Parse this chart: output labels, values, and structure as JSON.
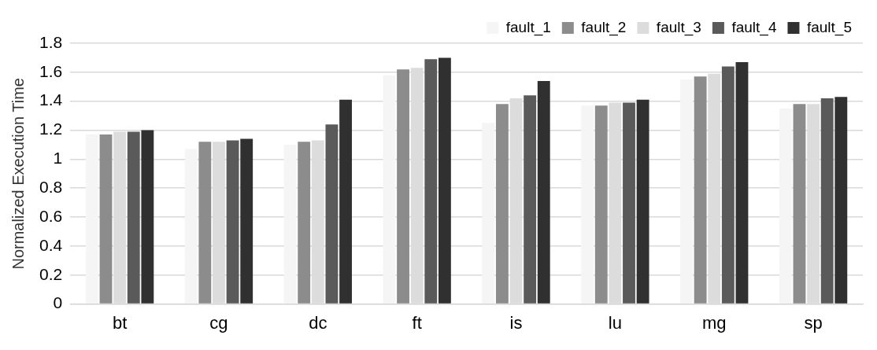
{
  "chart_data": {
    "type": "bar",
    "ylabel": "Normalized Execution Time",
    "categories": [
      "bt",
      "cg",
      "dc",
      "ft",
      "is",
      "lu",
      "mg",
      "sp"
    ],
    "series": [
      {
        "name": "fault_1",
        "color": "#f5f5f5",
        "values": [
          1.17,
          1.07,
          1.1,
          1.58,
          1.25,
          1.37,
          1.55,
          1.35
        ]
      },
      {
        "name": "fault_2",
        "color": "#8c8c8c",
        "values": [
          1.17,
          1.12,
          1.12,
          1.62,
          1.38,
          1.37,
          1.57,
          1.38
        ]
      },
      {
        "name": "fault_3",
        "color": "#dcdcdc",
        "values": [
          1.19,
          1.12,
          1.13,
          1.63,
          1.42,
          1.39,
          1.59,
          1.38
        ]
      },
      {
        "name": "fault_4",
        "color": "#5a5a5a",
        "values": [
          1.19,
          1.13,
          1.24,
          1.69,
          1.44,
          1.39,
          1.64,
          1.42
        ]
      },
      {
        "name": "fault_5",
        "color": "#303030",
        "values": [
          1.2,
          1.14,
          1.41,
          1.7,
          1.54,
          1.41,
          1.67,
          1.43
        ]
      }
    ],
    "ylim": [
      0,
      1.8
    ],
    "yticks": [
      0,
      0.2,
      0.4,
      0.6,
      0.8,
      1,
      1.2,
      1.4,
      1.6,
      1.8
    ],
    "grid": "y",
    "legend": "top right"
  }
}
